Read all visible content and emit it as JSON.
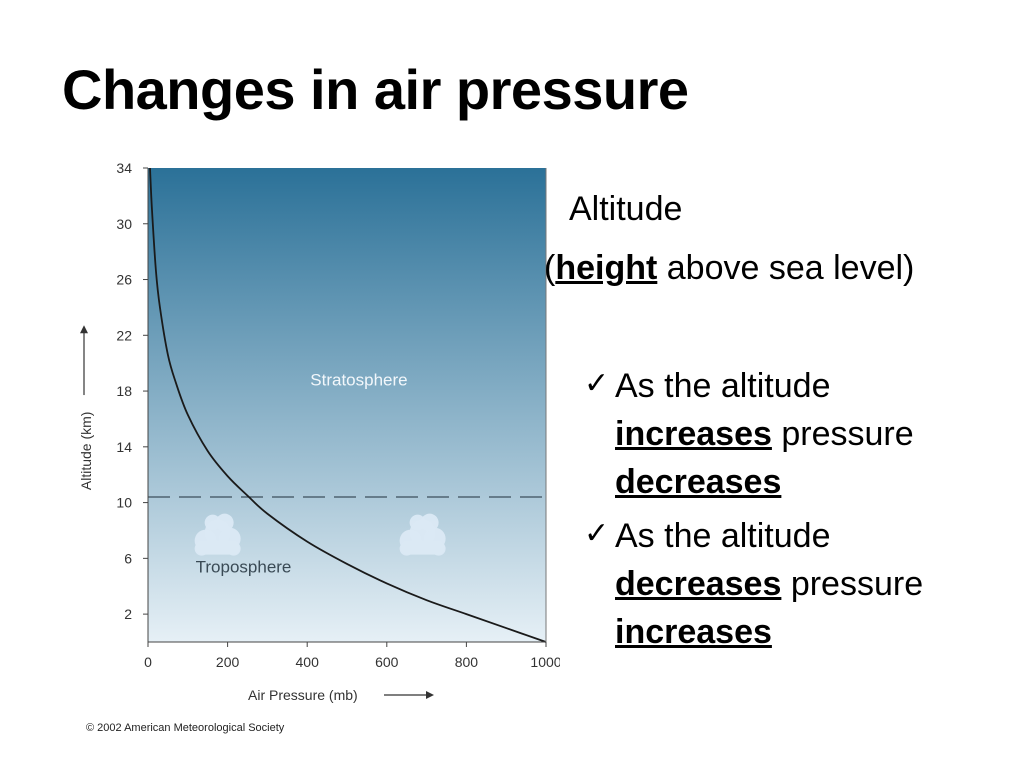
{
  "title": "Changes in air pressure",
  "subtitle": {
    "line1": "Altitude",
    "open_paren": "(",
    "keyword": "height",
    "rest": " above sea level)"
  },
  "bullets": [
    {
      "icon": "check-icon",
      "prefix": "As the altitude",
      "kw1": "increases",
      "middle": " pressure",
      "kw2": "decreases"
    },
    {
      "icon": "check-icon",
      "prefix": "As the altitude",
      "kw1": "decreases",
      "middle": " pressure",
      "kw2": "increases"
    }
  ],
  "copyright": "© 2002 American Meteorological Society",
  "chart_data": {
    "type": "line",
    "xlabel": "Air Pressure (mb)",
    "ylabel": "Altitude (km)",
    "xlim": [
      0,
      1000
    ],
    "ylim": [
      0,
      34
    ],
    "xticks": [
      0,
      200,
      400,
      600,
      800,
      1000
    ],
    "yticks": [
      2,
      6,
      10,
      14,
      18,
      22,
      26,
      30,
      34
    ],
    "grid": false,
    "series": [
      {
        "x": [
          1000,
          900,
          800,
          700,
          600,
          500,
          400,
          300,
          250,
          200,
          150,
          100,
          70,
          50,
          30,
          20,
          10,
          5
        ],
        "y": [
          0,
          1,
          2,
          3,
          4.2,
          5.6,
          7.2,
          9.2,
          10.5,
          11.9,
          13.7,
          16.3,
          18.6,
          20.6,
          24.0,
          26.6,
          31.0,
          34.0
        ]
      }
    ],
    "tropopause_altitude": 10.4,
    "region_labels": [
      {
        "text": "Stratosphere",
        "x": 530,
        "y": 18.4
      },
      {
        "text": "Troposphere",
        "x": 240,
        "y": 5.0
      }
    ],
    "clouds": [
      {
        "x": 175,
        "y": 7.7
      },
      {
        "x": 690,
        "y": 7.7
      }
    ],
    "colors": {
      "sky_top": "#2b7198",
      "sky_bottom": "#e6f0f6",
      "curve": "#1a1a1a",
      "cloud": "#dbe9f4"
    }
  }
}
